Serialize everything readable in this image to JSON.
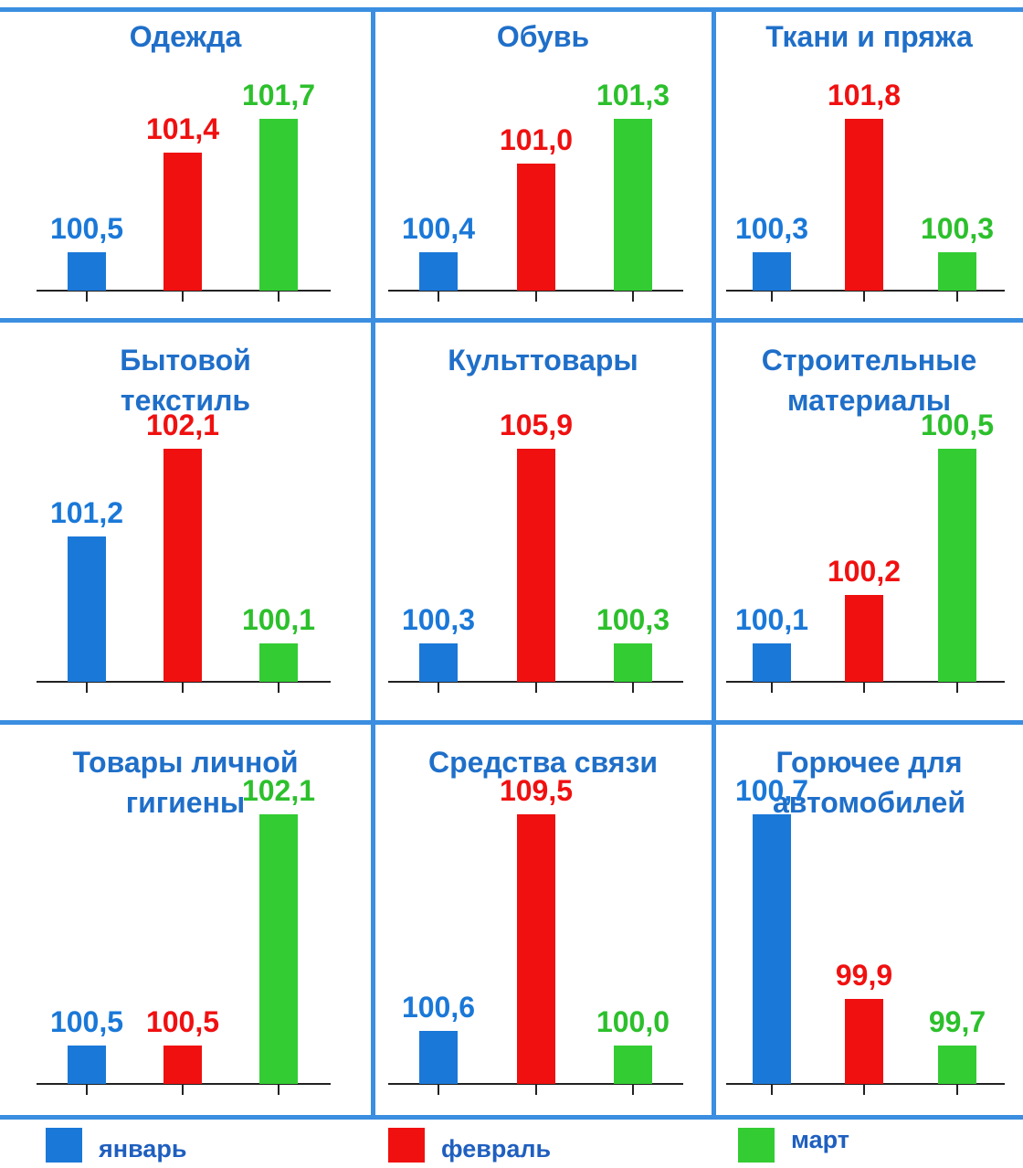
{
  "legend": [
    {
      "name": "январь",
      "color": "#1a78d8"
    },
    {
      "name": "февраль",
      "color": "#f01010"
    },
    {
      "name": "март",
      "color": "#33cc33"
    }
  ],
  "chart_data": [
    {
      "type": "bar",
      "title": "Одежда",
      "values": [
        100.5,
        101.4,
        101.7
      ],
      "value_labels": [
        "100,5",
        "101,4",
        "101,7"
      ]
    },
    {
      "type": "bar",
      "title": "Обувь",
      "values": [
        100.4,
        101.0,
        101.3
      ],
      "value_labels": [
        "100,4",
        "101,0",
        "101,3"
      ]
    },
    {
      "type": "bar",
      "title": "Ткани и пряжа",
      "values": [
        100.3,
        101.8,
        100.3
      ],
      "value_labels": [
        "100,3",
        "101,8",
        "100,3"
      ]
    },
    {
      "type": "bar",
      "title": "Бытовой\nтекстиль",
      "values": [
        101.2,
        102.1,
        100.1
      ],
      "value_labels": [
        "101,2",
        "102,1",
        "100,1"
      ]
    },
    {
      "type": "bar",
      "title": "Культтовары",
      "values": [
        100.3,
        105.9,
        100.3
      ],
      "value_labels": [
        "100,3",
        "105,9",
        "100,3"
      ]
    },
    {
      "type": "bar",
      "title": "Строительные\nматериалы",
      "values": [
        100.1,
        100.2,
        100.5
      ],
      "value_labels": [
        "100,1",
        "100,2",
        "100,5"
      ]
    },
    {
      "type": "bar",
      "title": "Товары личной\nгигиены",
      "values": [
        100.5,
        100.5,
        102.1
      ],
      "value_labels": [
        "100,5",
        "100,5",
        "102,1"
      ]
    },
    {
      "type": "bar",
      "title": "Средства связи",
      "values": [
        100.6,
        109.5,
        100.0
      ],
      "value_labels": [
        "100,6",
        "109,5",
        "100,0"
      ]
    },
    {
      "type": "bar",
      "title": "Горючее для\nавтомобилей",
      "values": [
        100.7,
        99.9,
        99.7
      ],
      "value_labels": [
        "100,7",
        "99,9",
        "99,7"
      ]
    }
  ]
}
